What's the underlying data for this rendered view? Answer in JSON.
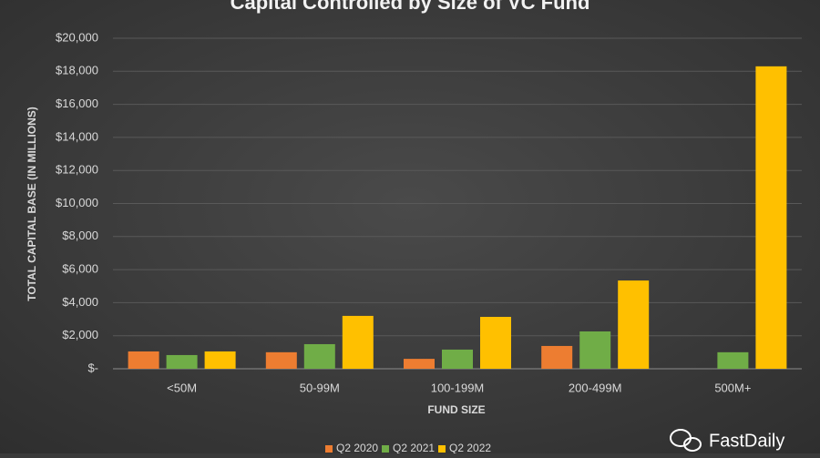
{
  "chart_data": {
    "type": "bar",
    "title": "Capital Controlled by Size of VC Fund",
    "x_label": "FUND SIZE",
    "y_label": "TOTAL CAPITAL BASE (IN MILLIONS)",
    "categories": [
      "<50M",
      "50-99M",
      "100-199M",
      "200-499M",
      "500M+"
    ],
    "series": [
      {
        "name": "Q2 2020",
        "color": "#ed7d31",
        "values": [
          1050,
          1000,
          600,
          1380,
          null
        ]
      },
      {
        "name": "Q2 2021",
        "color": "#70ad47",
        "values": [
          830,
          1490,
          1160,
          2260,
          1000
        ]
      },
      {
        "name": "Q2 2022",
        "color": "#ffc000",
        "values": [
          1050,
          3200,
          3140,
          5340,
          18300
        ]
      }
    ],
    "ylim": [
      0,
      20000
    ],
    "yticks": [
      {
        "value": 0,
        "label": "$-"
      },
      {
        "value": 2000,
        "label": "$2,000"
      },
      {
        "value": 4000,
        "label": "$4,000"
      },
      {
        "value": 6000,
        "label": "$6,000"
      },
      {
        "value": 8000,
        "label": "$8,000"
      },
      {
        "value": 10000,
        "label": "$10,000"
      },
      {
        "value": 12000,
        "label": "$12,000"
      },
      {
        "value": 14000,
        "label": "$14,000"
      },
      {
        "value": 16000,
        "label": "$16,000"
      },
      {
        "value": 18000,
        "label": "$18,000"
      },
      {
        "value": 20000,
        "label": "$20,000"
      }
    ],
    "grid": true,
    "legend": "bottom",
    "watermark": "FastDaily"
  }
}
